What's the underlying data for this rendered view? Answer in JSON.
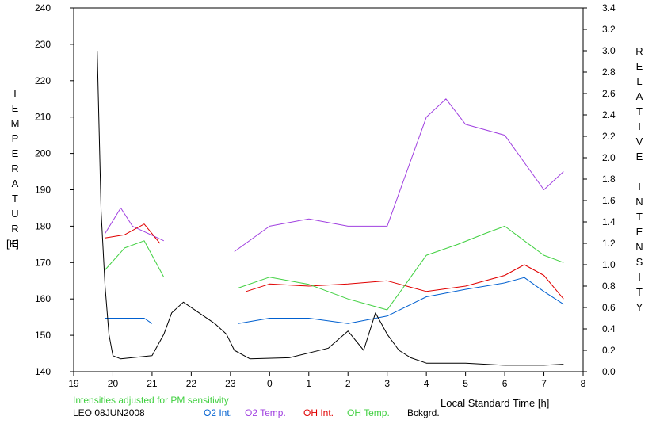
{
  "chart_data": {
    "type": "line",
    "xlabel": "Local Standard Time [h]",
    "ylabel_left": "TEMPERATURE",
    "ylabel_left_unit": "[K]",
    "ylabel_right": "RELATIVE INTENSITY",
    "annotation": "Intensities adjusted for PM sensitivity",
    "station": "LEO 08JUN2008",
    "x_ticks": [
      "19",
      "20",
      "21",
      "22",
      "23",
      "0",
      "1",
      "2",
      "3",
      "4",
      "5",
      "6",
      "7",
      "8"
    ],
    "y_left_ticks": [
      "140",
      "150",
      "160",
      "170",
      "180",
      "190",
      "200",
      "210",
      "220",
      "230",
      "240"
    ],
    "y_right_ticks": [
      "0.0",
      "0.2",
      "0.4",
      "0.6",
      "0.8",
      "1.0",
      "1.2",
      "1.4",
      "1.6",
      "1.8",
      "2.0",
      "2.2",
      "2.4",
      "2.6",
      "2.8",
      "3.0",
      "3.2",
      "3.4"
    ],
    "xlim": [
      19,
      32
    ],
    "ylim_left": [
      140,
      240
    ],
    "ylim_right": [
      0,
      3.4
    ],
    "grid": false,
    "legend_position": "bottom",
    "series": [
      {
        "name": "O2 Int.",
        "axis": "right",
        "color": "#0060d0",
        "segments": [
          {
            "x": [
              19.8,
              20.3,
              20.8,
              21.0
            ],
            "y": [
              0.5,
              0.5,
              0.5,
              0.45
            ]
          },
          {
            "x": [
              23.2,
              24.0,
              25.0,
              26.0,
              27.0,
              28.0,
              29.0,
              30.0,
              30.5,
              31.0,
              31.5
            ],
            "y": [
              0.45,
              0.5,
              0.5,
              0.45,
              0.52,
              0.7,
              0.77,
              0.83,
              0.88,
              0.75,
              0.63
            ]
          }
        ]
      },
      {
        "name": "O2 Temp.",
        "axis": "left",
        "color": "#a040e0",
        "segments": [
          {
            "x": [
              19.8,
              20.2,
              20.5,
              21.3
            ],
            "y": [
              178,
              185,
              180,
              176
            ]
          },
          {
            "x": [
              23.1,
              24.0,
              25.0,
              26.0,
              27.0,
              27.5,
              28.0,
              28.5,
              29.0,
              30.0,
              31.0,
              31.5
            ],
            "y": [
              173,
              180,
              182,
              180,
              180,
              195,
              210,
              215,
              208,
              205,
              190,
              195
            ]
          }
        ]
      },
      {
        "name": "OH Int.",
        "axis": "right",
        "color": "#e00000",
        "segments": [
          {
            "x": [
              19.8,
              20.3,
              20.8,
              21.2
            ],
            "y": [
              1.25,
              1.28,
              1.38,
              1.2
            ]
          },
          {
            "x": [
              23.4,
              24.0,
              25.0,
              26.0,
              27.0,
              28.0,
              29.0,
              30.0,
              30.5,
              31.0,
              31.5
            ],
            "y": [
              0.75,
              0.82,
              0.8,
              0.82,
              0.85,
              0.75,
              0.8,
              0.9,
              1.0,
              0.9,
              0.68
            ]
          }
        ]
      },
      {
        "name": "OH Temp.",
        "axis": "left",
        "color": "#40d040",
        "segments": [
          {
            "x": [
              19.8,
              20.3,
              20.8,
              21.3
            ],
            "y": [
              168,
              174,
              176,
              166
            ]
          },
          {
            "x": [
              23.2,
              24.0,
              25.0,
              26.0,
              27.0,
              28.0,
              28.8,
              29.5,
              30.0,
              30.5,
              31.0,
              31.5
            ],
            "y": [
              163,
              166,
              164,
              160,
              157,
              172,
              175,
              178,
              180,
              176,
              172,
              170
            ]
          }
        ]
      },
      {
        "name": "Bckgrd.",
        "axis": "right",
        "color": "#000000",
        "segments": [
          {
            "x": [
              19.6,
              19.7,
              19.8,
              19.9,
              20.0,
              20.2,
              21.0,
              21.3,
              21.5,
              21.8,
              22.2,
              22.6,
              22.9,
              23.1,
              23.5,
              24.5,
              25.5,
              26.0,
              26.4,
              26.7,
              27.0,
              27.3,
              27.6,
              28.0,
              29.0,
              30.0,
              31.0,
              31.5
            ],
            "y": [
              3.0,
              1.5,
              0.8,
              0.35,
              0.15,
              0.12,
              0.15,
              0.35,
              0.55,
              0.65,
              0.55,
              0.45,
              0.35,
              0.2,
              0.12,
              0.13,
              0.22,
              0.38,
              0.2,
              0.55,
              0.35,
              0.2,
              0.13,
              0.08,
              0.08,
              0.06,
              0.06,
              0.07
            ]
          }
        ]
      }
    ]
  }
}
